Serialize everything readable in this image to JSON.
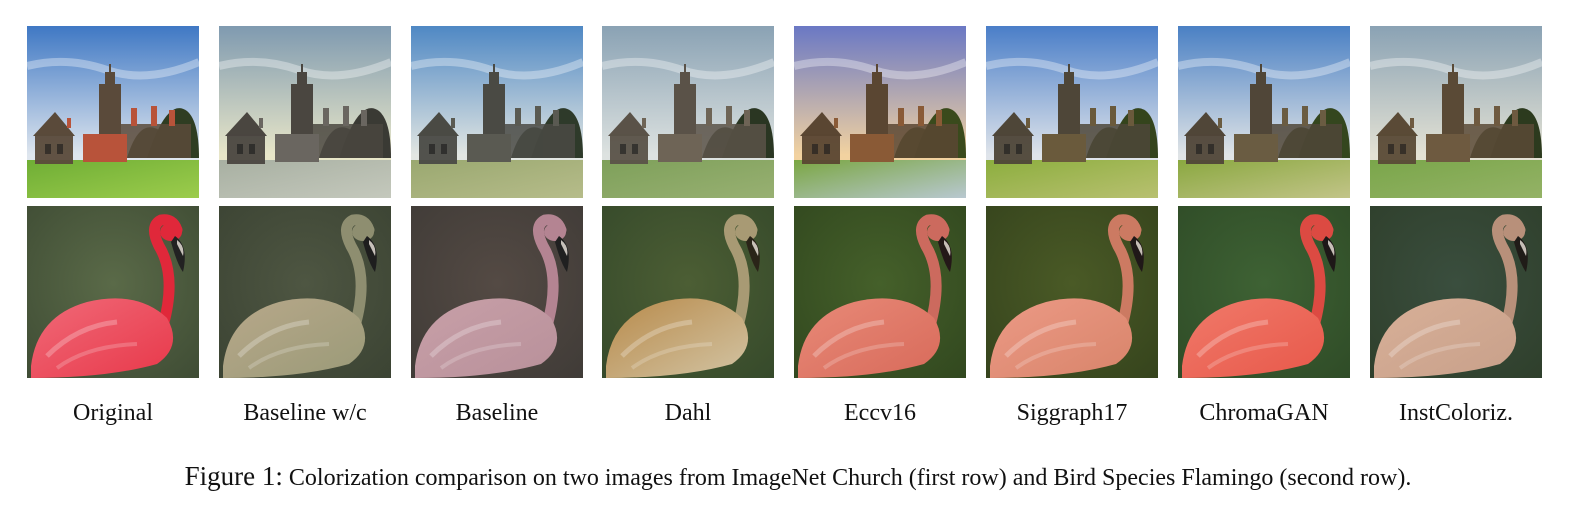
{
  "figure": {
    "number": "Figure 1:",
    "caption": "Colorization comparison on two images from ImageNet Church (first row) and Bird Species Flamingo (second row)."
  },
  "methods": [
    {
      "label": "Original",
      "church": {
        "sky": "#3f78c4",
        "sky2": "#dfe6ee",
        "grass": "#6fae35",
        "grass2": "#9ccc4c",
        "build": "#5a4a3a",
        "roof": "#b8533a",
        "tree": "#2f3d22"
      },
      "flamingo": {
        "bg": "#3d4a33",
        "bg2": "#5a6a48",
        "bird": "#e8384a",
        "bird2": "#f06a78",
        "neck": "#e0283a",
        "beak": "#222222"
      }
    },
    {
      "label": "Baseline w/c",
      "church": {
        "sky": "#7f9ab0",
        "sky2": "#e8e6c8",
        "grass": "#a8b0a2",
        "grass2": "#c4c8bc",
        "build": "#4a4640",
        "roof": "#6a6660",
        "tree": "#3a3a34"
      },
      "flamingo": {
        "bg": "#3a4232",
        "bg2": "#4e5642",
        "bird": "#9a9a78",
        "bird2": "#b8a88a",
        "neck": "#8e8e70",
        "beak": "#1e1e1e"
      }
    },
    {
      "label": "Baseline",
      "church": {
        "sky": "#4f88c4",
        "sky2": "#e2e6e2",
        "grass": "#9aa870",
        "grass2": "#b6bc8a",
        "build": "#4a4a44",
        "roof": "#5a5a52",
        "tree": "#2e3a2a"
      },
      "flamingo": {
        "bg": "#3e3a36",
        "bg2": "#544a44",
        "bird": "#b8909a",
        "bird2": "#c8a0a8",
        "neck": "#b48492",
        "beak": "#202020"
      }
    },
    {
      "label": "Dahl",
      "church": {
        "sky": "#8aa2b4",
        "sky2": "#dde2e0",
        "grass": "#7ea05a",
        "grass2": "#98b072",
        "build": "#5a5248",
        "roof": "#6e6456",
        "tree": "#2a3622"
      },
      "flamingo": {
        "bg": "#34482a",
        "bg2": "#4c5e34",
        "bird": "#d2c4a4",
        "bird2": "#b88a4a",
        "neck": "#a89a74",
        "beak": "#2a2418"
      }
    },
    {
      "label": "Eccv16",
      "church": {
        "sky": "#6a78c4",
        "sky2": "#f2d2a0",
        "grass": "#7aa642",
        "grass2": "#b8c8d0",
        "build": "#5a4632",
        "roof": "#8a5a36",
        "tree": "#3a4a1c"
      },
      "flamingo": {
        "bg": "#30461e",
        "bg2": "#45602a",
        "bird": "#d86a5a",
        "bird2": "#e88a78",
        "neck": "#cc6a5e",
        "beak": "#241818"
      }
    },
    {
      "label": "Siggraph17",
      "church": {
        "sky": "#4a7ec8",
        "sky2": "#dfe4ea",
        "grass": "#8cae3e",
        "grass2": "#b8c070",
        "build": "#4e4638",
        "roof": "#6a5a3c",
        "tree": "#34441c"
      },
      "flamingo": {
        "bg": "#34421c",
        "bg2": "#4a5a26",
        "bird": "#d8846a",
        "bird2": "#ec9a86",
        "neck": "#cc7a62",
        "beak": "#201818"
      }
    },
    {
      "label": "ChromaGAN",
      "church": {
        "sky": "#4a80c4",
        "sky2": "#e0e4e6",
        "grass": "#8aa840",
        "grass2": "#c2c488",
        "build": "#504638",
        "roof": "#6a5c42",
        "tree": "#34461e"
      },
      "flamingo": {
        "bg": "#2e4a26",
        "bg2": "#3e6234",
        "bird": "#e8584a",
        "bird2": "#f07a6a",
        "neck": "#dc4a42",
        "beak": "#1e1818"
      }
    },
    {
      "label": "InstColoriz.",
      "church": {
        "sky": "#8aa2b4",
        "sky2": "#e4e2d4",
        "grass": "#7aa64a",
        "grass2": "#94b266",
        "build": "#5a4a36",
        "roof": "#6e5a40",
        "tree": "#2c3a1e"
      },
      "flamingo": {
        "bg": "#2e3e2a",
        "bg2": "#3a4e3e",
        "bird": "#c8a08a",
        "bird2": "#d8b098",
        "neck": "#b8907a",
        "beak": "#201c18"
      }
    }
  ]
}
